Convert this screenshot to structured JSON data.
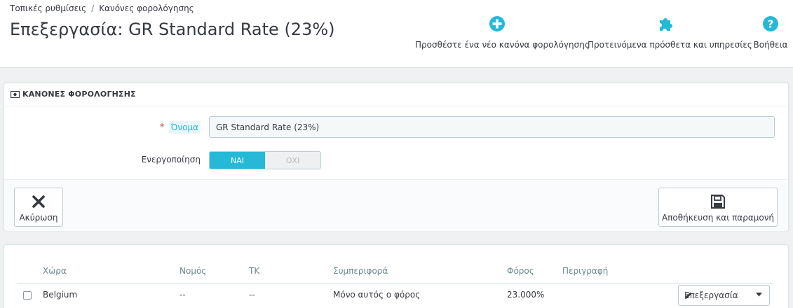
{
  "breadcrumb": {
    "item1": "Τοπικές ρυθμίσεις",
    "separator": "/",
    "item2": "Κανόνες φορολόγησης"
  },
  "page_title": "Επεξεργασία: GR Standard Rate (23%)",
  "toolbar": {
    "add_rule": {
      "label": "Προσθέστε ένα νέο κανόνα φορολόγησης",
      "icon": "plus-circle-icon"
    },
    "addons": {
      "label": "Προτεινόμενα πρόσθετα και υπηρεσίες",
      "icon": "puzzle-icon"
    },
    "help": {
      "label": "Βοήθεια",
      "icon": "question-circle-icon"
    }
  },
  "form_panel": {
    "heading": "ΚΑΝΟΝΕΣ ΦΟΡΟΛΟΓΗΣΗΣ",
    "name_label": "Όνομα",
    "required_mark": "*",
    "name_value": "GR Standard Rate (23%)",
    "enable_label": "Ενεργοποίηση",
    "enable_on": "ΝΑΙ",
    "enable_off": "ΟΧΙ",
    "enabled": true,
    "cancel_label": "Ακύρωση",
    "save_stay_label": "Αποθήκευση και παραμονή"
  },
  "table": {
    "headers": {
      "country": "Χώρα",
      "state": "Νομός",
      "zip": "ΤΚ",
      "behavior": "Συμπεριφορά",
      "tax": "Φόρος",
      "description": "Περιγραφή"
    },
    "rows": [
      {
        "country": "Belgium",
        "state": "--",
        "zip": "--",
        "behavior": "Μόνο αυτός ο φόρος",
        "tax": "23.000%",
        "description": "",
        "edit_label": "Επεξεργασία"
      }
    ]
  },
  "colors": {
    "accent": "#25b9d7",
    "text": "#363a41",
    "required": "#c05c67"
  }
}
